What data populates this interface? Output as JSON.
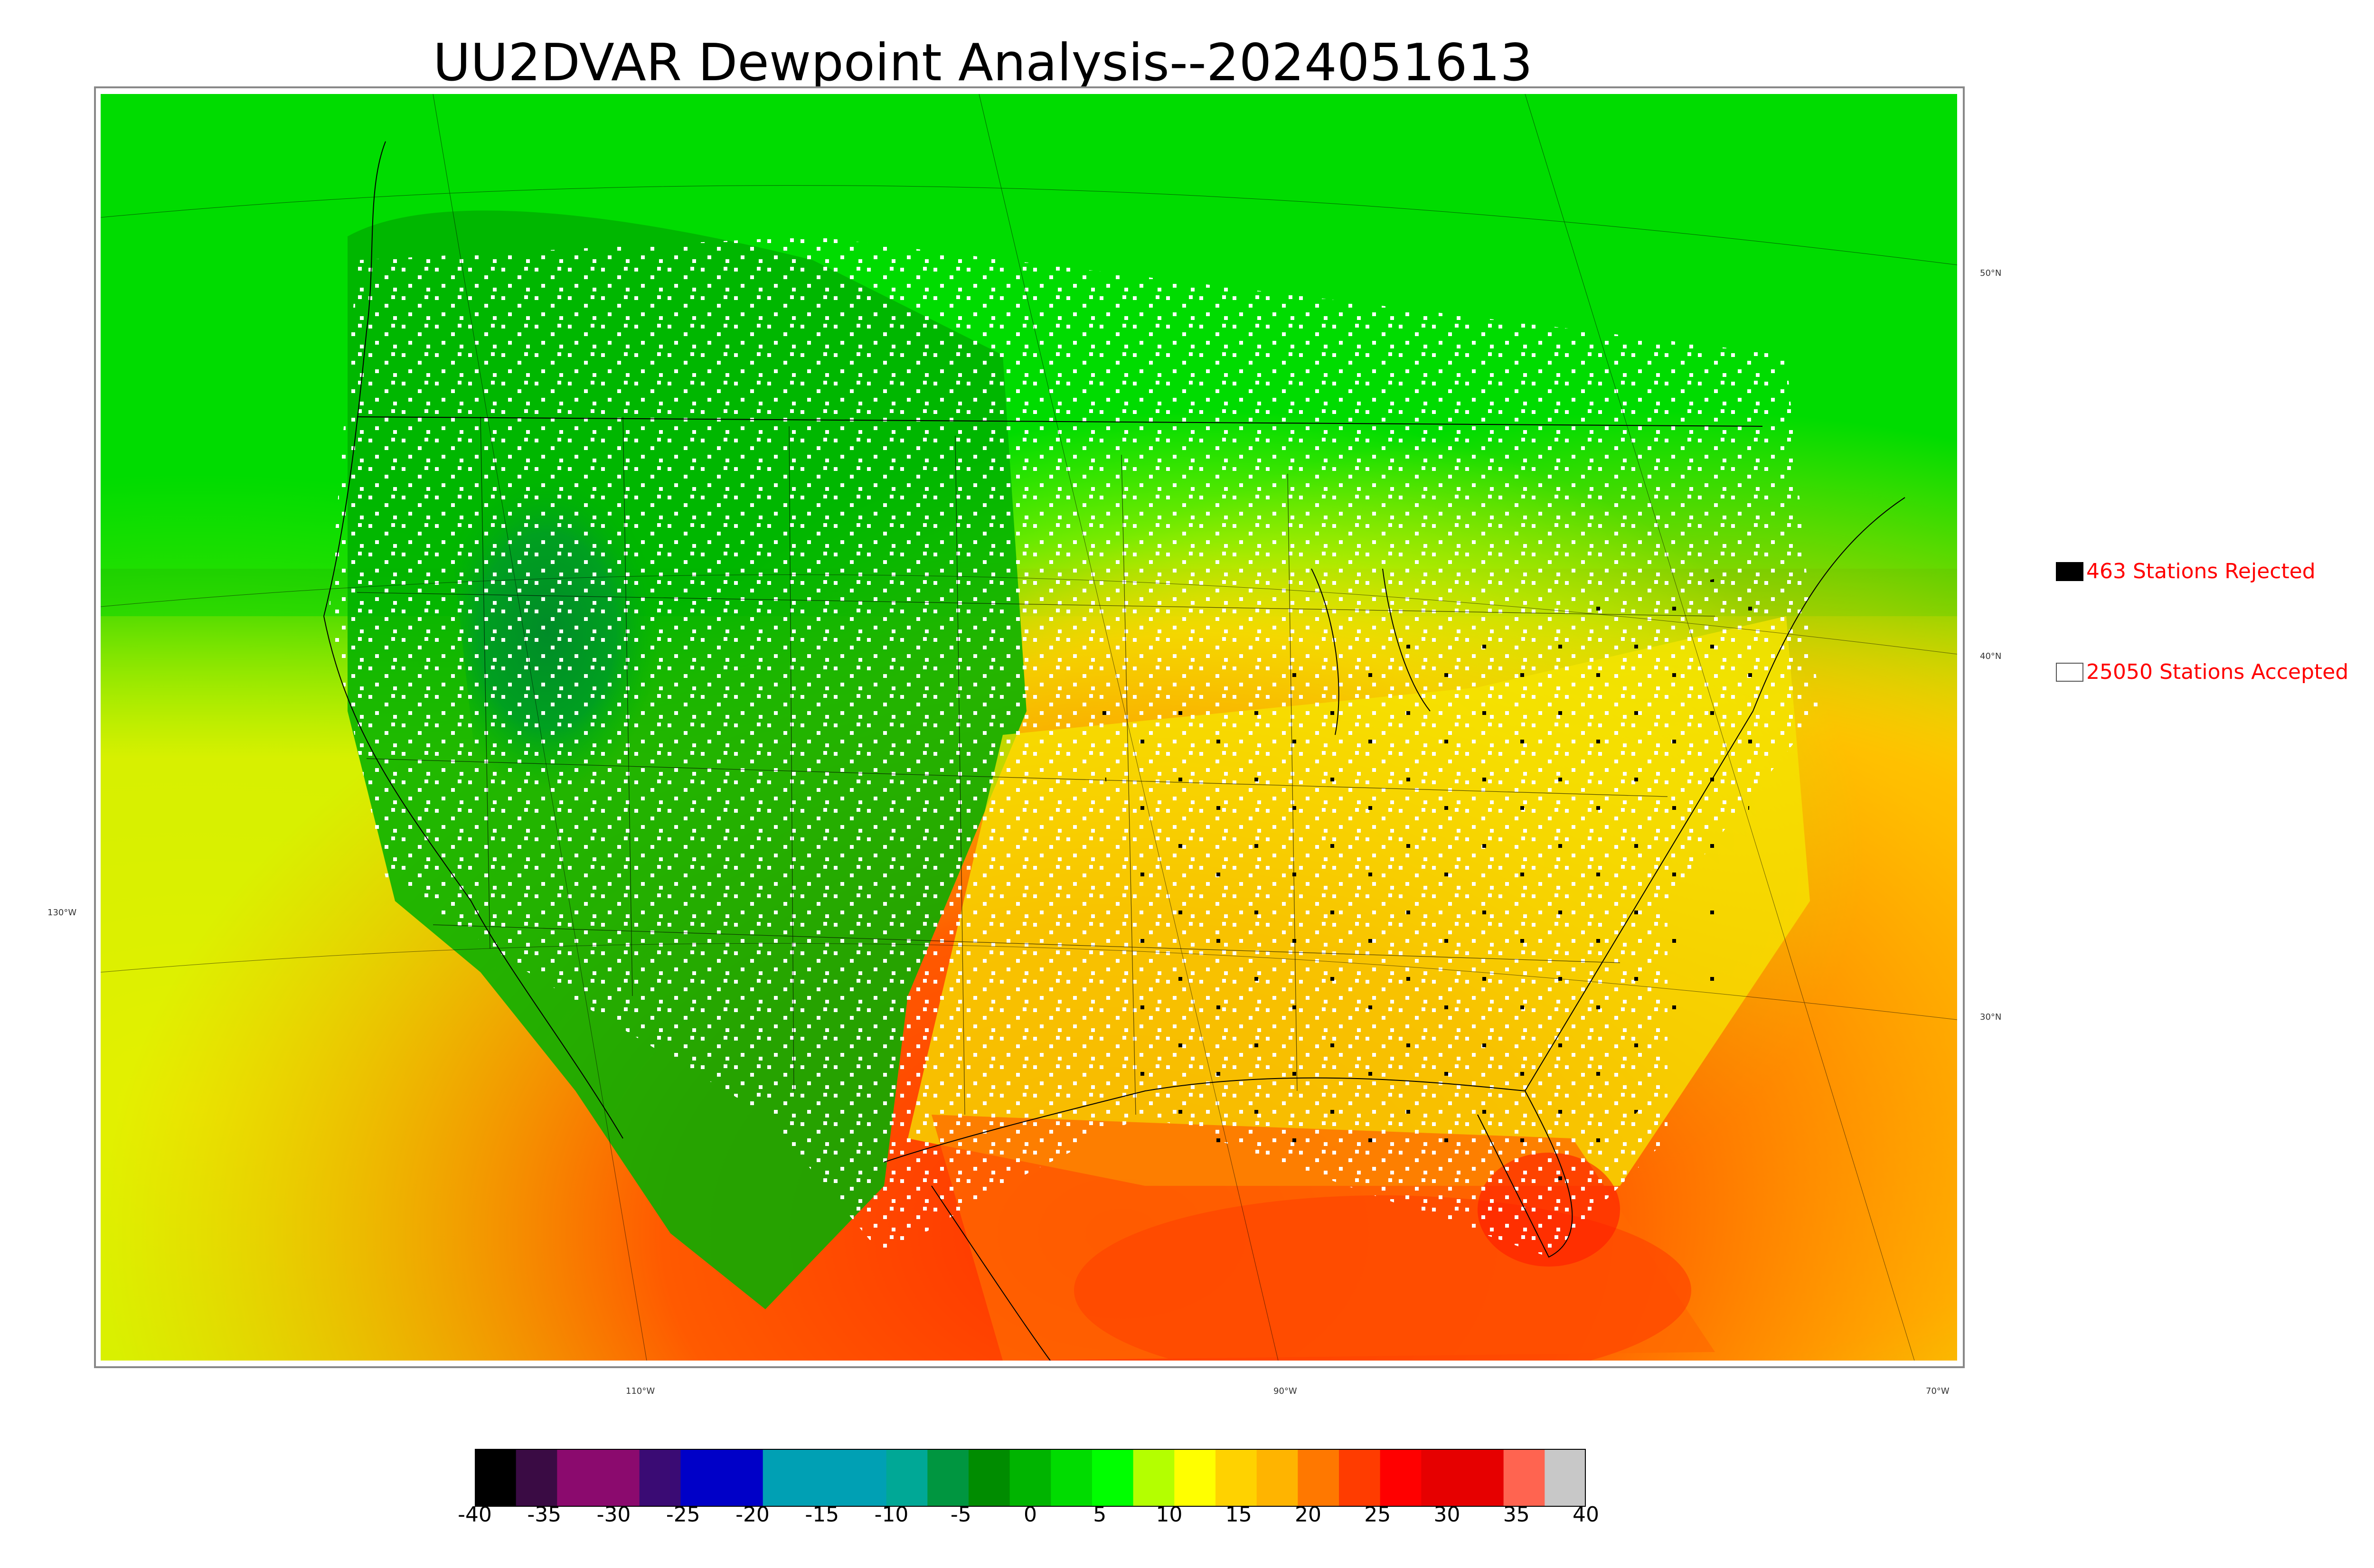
{
  "title": "UU2DVAR Dewpoint Analysis--2024051613",
  "lat_labels": [
    "50°N",
    "40°N",
    "30°N"
  ],
  "lon_labels": [
    "130°W",
    "110°W",
    "90°W",
    "70°W"
  ],
  "legend": {
    "rejected": {
      "label": "463 Stations Rejected",
      "swatch": "#000000"
    },
    "accepted": {
      "label": "25050 Stations Accepted",
      "swatch": "#ffffff"
    }
  },
  "colorbar": {
    "ticks": [
      "-40",
      "-35",
      "-30",
      "-25",
      "-20",
      "-15",
      "-10",
      "-5",
      "0",
      "5",
      "10",
      "15",
      "20",
      "25",
      "30",
      "35",
      "40"
    ],
    "colors": [
      "#000000",
      "#3a0b44",
      "#8b0a6e",
      "#8b0a6e",
      "#3a0b74",
      "#0000c8",
      "#0000c8",
      "#00a0b4",
      "#00a0b4",
      "#00a0b4",
      "#00a896",
      "#009640",
      "#008c00",
      "#00b400",
      "#00dc00",
      "#00ff00",
      "#b4ff00",
      "#ffff00",
      "#ffd200",
      "#ffb400",
      "#ff7800",
      "#ff3c00",
      "#ff0000",
      "#e60000",
      "#e60000",
      "#ff6450",
      "#c8c8c8"
    ]
  },
  "colors": {
    "legend_text": "#ff0000",
    "title_text": "#000000"
  }
}
